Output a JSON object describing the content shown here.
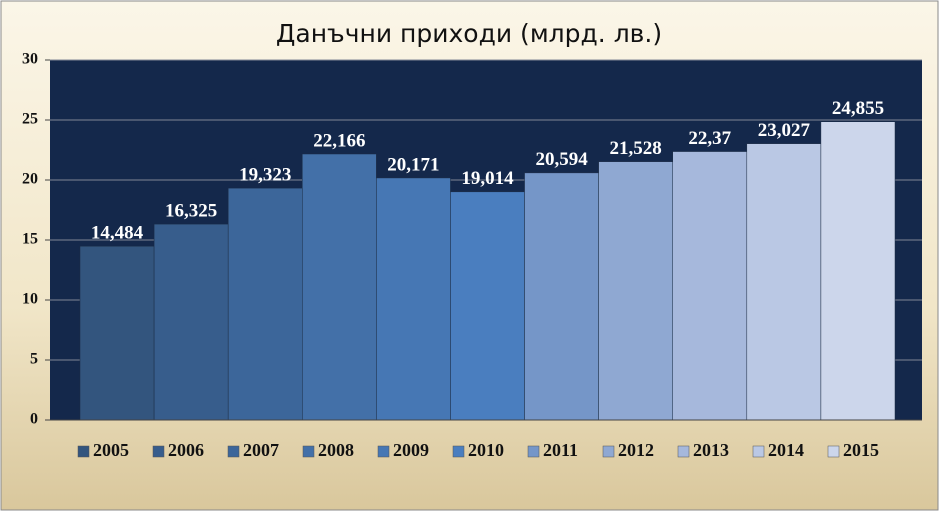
{
  "chart_data": {
    "type": "bar",
    "title": "Данъчни приходи (млрд. лв.)",
    "categories": [
      null
    ],
    "series": [
      {
        "name": "2005",
        "color": "#33557e",
        "values": [
          14.484
        ],
        "value_labels": [
          "14,484"
        ]
      },
      {
        "name": "2006",
        "color": "#375d8c",
        "values": [
          16.325
        ],
        "value_labels": [
          "16,325"
        ]
      },
      {
        "name": "2007",
        "color": "#3c669a",
        "values": [
          19.323
        ],
        "value_labels": [
          "19,323"
        ]
      },
      {
        "name": "2008",
        "color": "#4370a8",
        "values": [
          22.166
        ],
        "value_labels": [
          "22,166"
        ]
      },
      {
        "name": "2009",
        "color": "#4677b4",
        "values": [
          20.171
        ],
        "value_labels": [
          "20,171"
        ]
      },
      {
        "name": "2010",
        "color": "#4a7ebf",
        "values": [
          19.014
        ],
        "value_labels": [
          "19,014"
        ]
      },
      {
        "name": "2011",
        "color": "#7596c8",
        "values": [
          20.594
        ],
        "value_labels": [
          "20,594"
        ]
      },
      {
        "name": "2012",
        "color": "#8fa8d2",
        "values": [
          21.528
        ],
        "value_labels": [
          "21,528"
        ]
      },
      {
        "name": "2013",
        "color": "#a6b8dc",
        "values": [
          22.37
        ],
        "value_labels": [
          "22,37"
        ]
      },
      {
        "name": "2014",
        "color": "#bac8e4",
        "values": [
          23.027
        ],
        "value_labels": [
          "23,027"
        ]
      },
      {
        "name": "2015",
        "color": "#ccd6eb",
        "values": [
          24.855
        ],
        "value_labels": [
          "24,855"
        ]
      }
    ],
    "ylim": [
      0,
      30
    ],
    "yticks": [
      0,
      5,
      10,
      15,
      20,
      25,
      30
    ],
    "grid": true,
    "legend": "bottom"
  }
}
